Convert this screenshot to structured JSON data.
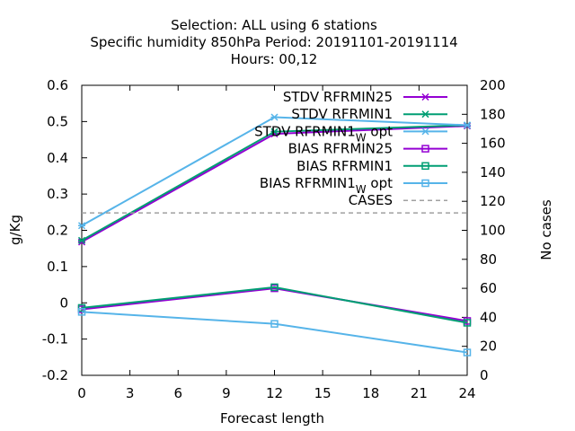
{
  "chart_data": {
    "type": "line",
    "title_lines": [
      "Selection: ALL using     6 stations",
      "Specific humidity 850hPa   Period: 20191101-20191114",
      "Hours:  00,12"
    ],
    "xlabel": "Forecast length",
    "ylabel": "g/Kg",
    "y2label": "No cases",
    "xlim": [
      0,
      24
    ],
    "ylim": [
      -0.2,
      0.6
    ],
    "y2lim": [
      0,
      200
    ],
    "x_ticks": [
      0,
      3,
      6,
      9,
      12,
      15,
      18,
      21,
      24
    ],
    "y_ticks": [
      "-0.2",
      "-0.1",
      "0",
      "0.1",
      "0.2",
      "0.3",
      "0.4",
      "0.5",
      "0.6"
    ],
    "y2_ticks": [
      "0",
      "20",
      "40",
      "60",
      "80",
      "100",
      "120",
      "140",
      "160",
      "180",
      "200"
    ],
    "legend_position": "top-right",
    "grid": false,
    "x": [
      0,
      12,
      24
    ],
    "series": [
      {
        "name": "STDV RFRMIN25",
        "label_main": "STDV RFRMIN25",
        "label_sub": "",
        "label_tail": "",
        "axis": "y",
        "marker": "x",
        "color": "#9400d3",
        "dashed": false,
        "values": [
          0.168,
          0.466,
          0.488
        ]
      },
      {
        "name": "STDV RFRMIN1",
        "label_main": "STDV RFRMIN1",
        "label_sub": "",
        "label_tail": "",
        "axis": "y",
        "marker": "x",
        "color": "#009e73",
        "dashed": false,
        "values": [
          0.172,
          0.472,
          0.49
        ]
      },
      {
        "name": "STDV RFRMIN1_W opt",
        "label_main": "STDV RFRMIN1",
        "label_sub": "W",
        "label_tail": "opt",
        "axis": "y",
        "marker": "x",
        "color": "#56b4e9",
        "dashed": false,
        "values": [
          0.213,
          0.512,
          0.49
        ]
      },
      {
        "name": "BIAS RFRMIN25",
        "label_main": "BIAS RFRMIN25",
        "label_sub": "",
        "label_tail": "",
        "axis": "y",
        "marker": "square",
        "color": "#9400d3",
        "dashed": false,
        "values": [
          -0.018,
          0.04,
          -0.05
        ]
      },
      {
        "name": "BIAS RFRMIN1",
        "label_main": "BIAS RFRMIN1",
        "label_sub": "",
        "label_tail": "",
        "axis": "y",
        "marker": "square",
        "color": "#009e73",
        "dashed": false,
        "values": [
          -0.014,
          0.043,
          -0.055
        ]
      },
      {
        "name": "BIAS RFRMIN1_W opt",
        "label_main": "BIAS RFRMIN1",
        "label_sub": "W",
        "label_tail": "opt",
        "axis": "y",
        "marker": "square",
        "color": "#56b4e9",
        "dashed": false,
        "values": [
          -0.025,
          -0.058,
          -0.137
        ]
      },
      {
        "name": "CASES",
        "label_main": "CASES",
        "label_sub": "",
        "label_tail": "",
        "axis": "y2",
        "marker": "none",
        "color": "#a0a0a0",
        "dashed": true,
        "values": [
          112,
          112,
          112
        ]
      }
    ]
  }
}
